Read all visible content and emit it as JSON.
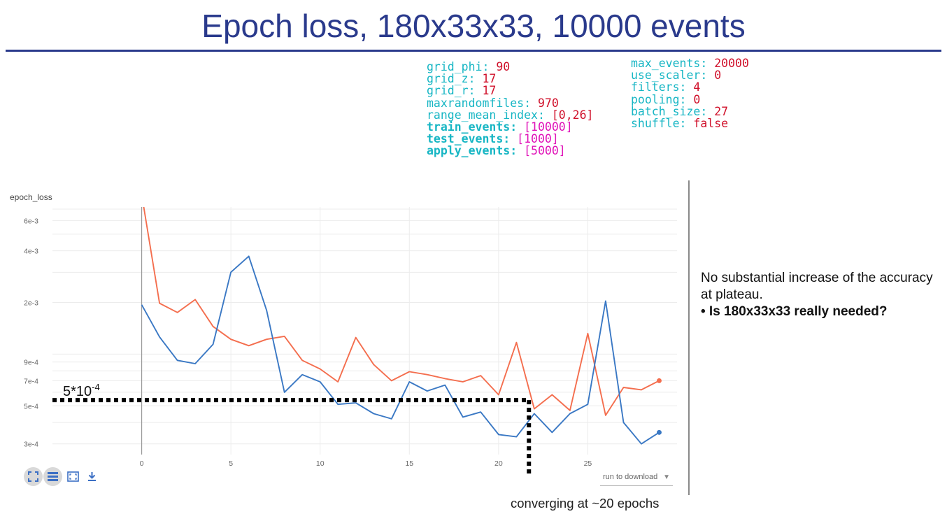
{
  "page": {
    "title": "Epoch loss, 180x33x33, 10000 events",
    "caption": "converging at ~20 epochs",
    "note": {
      "line1": "No substantial increase of the accuracy at plateau.",
      "bullet": "• Is 180x33x33 really needed?"
    },
    "threshold_label_base": "5*10",
    "threshold_label_exp": "-4",
    "download_label": "run to download"
  },
  "config_left": [
    {
      "key": "grid_phi",
      "value": "90",
      "bold": false
    },
    {
      "key": "grid_z",
      "value": "17",
      "bold": false
    },
    {
      "key": "grid_r",
      "value": "17",
      "bold": false
    },
    {
      "key": "maxrandomfiles",
      "value": "970",
      "bold": false
    },
    {
      "key": "range_mean_index",
      "value": "[0,26]",
      "bold": false
    },
    {
      "key": "train_events",
      "value": "[10000]",
      "bold": true
    },
    {
      "key": "test_events",
      "value": "[1000]",
      "bold": true
    },
    {
      "key": "apply_events",
      "value": "[5000]",
      "bold": true
    }
  ],
  "config_right": [
    {
      "key": "max_events",
      "value": "20000",
      "bold": false
    },
    {
      "key": "use_scaler",
      "value": "0",
      "bold": false
    },
    {
      "key": "filters",
      "value": "4",
      "bold": false
    },
    {
      "key": "pooling",
      "value": "0",
      "bold": false
    },
    {
      "key": "batch_size",
      "value": "27",
      "bold": false
    },
    {
      "key": "shuffle",
      "value": "false",
      "bold": false
    }
  ],
  "toolbar": {
    "icons": [
      "fit-domain-icon",
      "toggle-log-icon",
      "expand-icon",
      "download-icon"
    ]
  },
  "colors": {
    "title": "#2a3a8c",
    "orange_series": "#f46e4e",
    "blue_series": "#3a78c4",
    "key": "#17b6c4",
    "value": "#d0102a"
  },
  "chart_data": {
    "type": "line",
    "title": "epoch_loss",
    "y_scale": "log",
    "ylim": [
      0.00026,
      0.0072
    ],
    "xlim": [
      -5,
      30
    ],
    "x_ticks": [
      0,
      5,
      10,
      15,
      20,
      25
    ],
    "y_ticks": [
      {
        "value": 0.006,
        "label": "6e-3"
      },
      {
        "value": 0.004,
        "label": "4e-3"
      },
      {
        "value": 0.002,
        "label": "2e-3"
      },
      {
        "value": 0.0009,
        "label": "9e-4"
      },
      {
        "value": 0.0007,
        "label": "7e-4"
      },
      {
        "value": 0.0005,
        "label": "5e-4"
      },
      {
        "value": 0.0003,
        "label": "3e-4"
      }
    ],
    "series": [
      {
        "color": "#f46e4e",
        "x": [
          0,
          1,
          2,
          3,
          4,
          5,
          6,
          7,
          8,
          9,
          10,
          11,
          12,
          13,
          14,
          15,
          16,
          17,
          18,
          19,
          20,
          21,
          22,
          23,
          24,
          25,
          26,
          27,
          28,
          29
        ],
        "values": [
          0.0085,
          0.00198,
          0.00175,
          0.00208,
          0.00145,
          0.00122,
          0.00112,
          0.00122,
          0.00127,
          0.00092,
          0.00082,
          0.00069,
          0.00125,
          0.00087,
          0.0007,
          0.00079,
          0.00076,
          0.00072,
          0.00069,
          0.00075,
          0.00058,
          0.00117,
          0.00048,
          0.00058,
          0.00047,
          0.00132,
          0.00044,
          0.00064,
          0.00062,
          0.0007
        ]
      },
      {
        "color": "#3a78c4",
        "x": [
          0,
          1,
          2,
          3,
          4,
          5,
          6,
          7,
          8,
          9,
          10,
          11,
          12,
          13,
          14,
          15,
          16,
          17,
          18,
          19,
          20,
          21,
          22,
          23,
          24,
          25,
          26,
          27,
          28,
          29
        ],
        "values": [
          0.00194,
          0.00126,
          0.00092,
          0.00088,
          0.00114,
          0.003,
          0.00372,
          0.0018,
          0.0006,
          0.00076,
          0.00069,
          0.00051,
          0.00052,
          0.00045,
          0.00042,
          0.00069,
          0.00061,
          0.00066,
          0.00043,
          0.00046,
          0.00034,
          0.00033,
          0.00045,
          0.00035,
          0.00045,
          0.00051,
          0.00204,
          0.0004,
          0.0003,
          0.00035
        ]
      }
    ],
    "threshold": {
      "y": 0.00054,
      "x_end": 21.7,
      "label": "5*10^-4"
    }
  }
}
